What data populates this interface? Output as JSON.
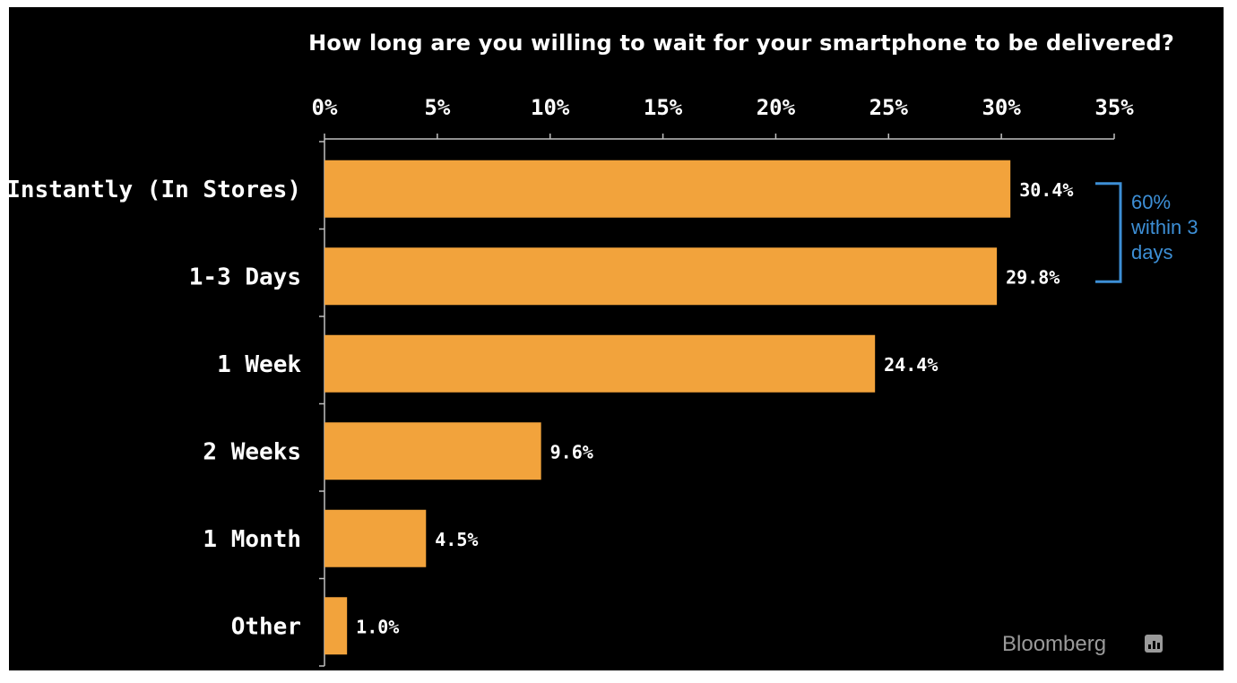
{
  "chart_data": {
    "type": "bar",
    "orientation": "horizontal",
    "title": "How long are you willing to wait for your smartphone to be delivered?",
    "categories": [
      "Instantly (In Stores)",
      "1-3 Days",
      "1 Week",
      "2 Weeks",
      "1 Month",
      "Other"
    ],
    "values": [
      30.4,
      29.8,
      24.4,
      9.6,
      4.5,
      1.0
    ],
    "data_labels": [
      "30.4%",
      "29.8%",
      "24.4%",
      "9.6%",
      "4.5%",
      "1.0%"
    ],
    "xlim": [
      0,
      35
    ],
    "x_ticks": [
      "0%",
      "5%",
      "10%",
      "15%",
      "20%",
      "25%",
      "30%",
      "35%"
    ],
    "x_axis_position": "top",
    "grid": false,
    "bar_color": "#f2a33c",
    "annotation": {
      "lines": [
        "60%",
        "within 3",
        "days"
      ],
      "spans_categories": [
        "Instantly (In Stores)",
        "1-3 Days"
      ],
      "color": "#3d8fd6"
    }
  },
  "source": "Bloomberg",
  "colors": {
    "background": "#000000",
    "text": "#ffffff",
    "bar": "#f2a33c",
    "annotation": "#3d8fd6",
    "brand": "#9a9a9a"
  }
}
